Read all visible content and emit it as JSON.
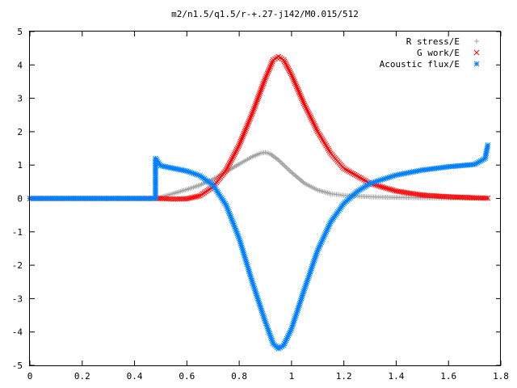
{
  "chart_data": {
    "type": "scatter",
    "title": "m2/n1.5/q1.5/r-+.27-j142/M0.015/512",
    "xlabel": "",
    "ylabel": "",
    "xlim": [
      0,
      1.8
    ],
    "ylim": [
      -5,
      5
    ],
    "x_ticks": [
      "0",
      "0.2",
      "0.4",
      "0.6",
      "0.8",
      "1",
      "1.2",
      "1.4",
      "1.6",
      "1.8"
    ],
    "y_ticks": [
      "5",
      "4",
      "3",
      "2",
      "1",
      "0",
      "-1",
      "-2",
      "-3",
      "-4",
      "-5"
    ],
    "grid": false,
    "legend_position": "top-right",
    "series": [
      {
        "name": "R stress/E",
        "marker": "plus",
        "color": "#a0a0a0",
        "points": [
          [
            0.0,
            0.0
          ],
          [
            0.1,
            0.0
          ],
          [
            0.2,
            0.0
          ],
          [
            0.3,
            0.0
          ],
          [
            0.4,
            0.0
          ],
          [
            0.48,
            0.0
          ],
          [
            0.5,
            0.04
          ],
          [
            0.55,
            0.15
          ],
          [
            0.6,
            0.27
          ],
          [
            0.65,
            0.4
          ],
          [
            0.7,
            0.58
          ],
          [
            0.75,
            0.8
          ],
          [
            0.8,
            1.03
          ],
          [
            0.85,
            1.25
          ],
          [
            0.88,
            1.35
          ],
          [
            0.9,
            1.38
          ],
          [
            0.92,
            1.33
          ],
          [
            0.95,
            1.15
          ],
          [
            1.0,
            0.78
          ],
          [
            1.05,
            0.45
          ],
          [
            1.1,
            0.25
          ],
          [
            1.15,
            0.14
          ],
          [
            1.2,
            0.09
          ],
          [
            1.3,
            0.05
          ],
          [
            1.4,
            0.03
          ],
          [
            1.5,
            0.02
          ],
          [
            1.6,
            0.01
          ],
          [
            1.7,
            0.01
          ],
          [
            1.75,
            0.0
          ]
        ]
      },
      {
        "name": "G work/E",
        "marker": "cross",
        "color": "#ff0000",
        "points": [
          [
            0.0,
            0.0
          ],
          [
            0.1,
            0.0
          ],
          [
            0.2,
            0.0
          ],
          [
            0.3,
            0.0
          ],
          [
            0.4,
            0.0
          ],
          [
            0.48,
            0.0
          ],
          [
            0.5,
            0.0
          ],
          [
            0.55,
            -0.02
          ],
          [
            0.6,
            -0.01
          ],
          [
            0.65,
            0.08
          ],
          [
            0.7,
            0.35
          ],
          [
            0.75,
            0.85
          ],
          [
            0.8,
            1.6
          ],
          [
            0.85,
            2.55
          ],
          [
            0.9,
            3.6
          ],
          [
            0.93,
            4.15
          ],
          [
            0.95,
            4.25
          ],
          [
            0.97,
            4.15
          ],
          [
            1.0,
            3.7
          ],
          [
            1.05,
            2.8
          ],
          [
            1.1,
            2.0
          ],
          [
            1.15,
            1.35
          ],
          [
            1.2,
            0.9
          ],
          [
            1.3,
            0.45
          ],
          [
            1.4,
            0.22
          ],
          [
            1.5,
            0.1
          ],
          [
            1.6,
            0.05
          ],
          [
            1.7,
            0.02
          ],
          [
            1.75,
            0.01
          ]
        ]
      },
      {
        "name": "Acoustic flux/E",
        "marker": "star",
        "color": "#0080ff",
        "points": [
          [
            0.0,
            0.0
          ],
          [
            0.1,
            0.0
          ],
          [
            0.2,
            0.0
          ],
          [
            0.3,
            0.0
          ],
          [
            0.4,
            0.0
          ],
          [
            0.48,
            0.0
          ],
          [
            0.48,
            1.2
          ],
          [
            0.5,
            0.98
          ],
          [
            0.55,
            0.9
          ],
          [
            0.6,
            0.82
          ],
          [
            0.65,
            0.68
          ],
          [
            0.7,
            0.4
          ],
          [
            0.75,
            -0.2
          ],
          [
            0.8,
            -1.2
          ],
          [
            0.85,
            -2.5
          ],
          [
            0.9,
            -3.7
          ],
          [
            0.93,
            -4.35
          ],
          [
            0.95,
            -4.5
          ],
          [
            0.97,
            -4.4
          ],
          [
            1.0,
            -3.9
          ],
          [
            1.05,
            -2.7
          ],
          [
            1.1,
            -1.55
          ],
          [
            1.15,
            -0.7
          ],
          [
            1.2,
            -0.15
          ],
          [
            1.25,
            0.2
          ],
          [
            1.3,
            0.45
          ],
          [
            1.4,
            0.7
          ],
          [
            1.5,
            0.85
          ],
          [
            1.6,
            0.95
          ],
          [
            1.7,
            1.02
          ],
          [
            1.74,
            1.2
          ],
          [
            1.75,
            1.6
          ]
        ]
      }
    ]
  }
}
